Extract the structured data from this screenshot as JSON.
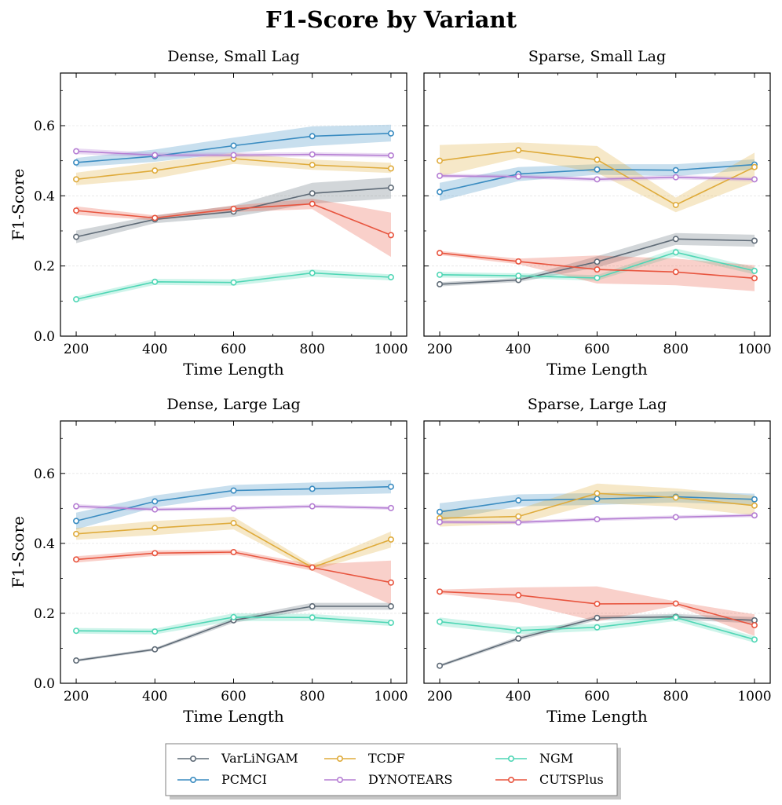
{
  "chart_data": {
    "type": "line",
    "title": "F1-Score  by Variant",
    "xlabel": "Time Length",
    "ylabel": "F1-Score",
    "x": [
      200,
      400,
      600,
      800,
      1000
    ],
    "xticks": [
      "200",
      "400",
      "600",
      "800",
      "1000"
    ],
    "yticks": [
      "0.0",
      "0.2",
      "0.4",
      "0.6"
    ],
    "ylim": [
      0,
      0.75
    ],
    "xlim": [
      160,
      1040
    ],
    "legend": {
      "placement": "bottom-center",
      "entries": [
        "VarLiNGAM",
        "PCMCI",
        "TCDF",
        "DYNOTEARS",
        "NGM",
        "CUTSPlus"
      ]
    },
    "colors": {
      "VarLiNGAM": "#5f6b77",
      "PCMCI": "#3a8cc1",
      "TCDF": "#dfab3b",
      "DYNOTEARS": "#b57ed3",
      "NGM": "#4fd6b5",
      "CUTSPlus": "#e8553f"
    },
    "panels": [
      {
        "title": "Dense, Small Lag",
        "series": [
          {
            "name": "VarLiNGAM",
            "values": [
              0.283,
              0.333,
              0.355,
              0.407,
              0.423
            ],
            "lower": [
              0.265,
              0.322,
              0.34,
              0.378,
              0.392
            ],
            "upper": [
              0.301,
              0.344,
              0.372,
              0.437,
              0.452
            ]
          },
          {
            "name": "PCMCI",
            "values": [
              0.495,
              0.513,
              0.543,
              0.57,
              0.578
            ],
            "lower": [
              0.482,
              0.497,
              0.522,
              0.542,
              0.555
            ],
            "upper": [
              0.508,
              0.532,
              0.566,
              0.598,
              0.603
            ]
          },
          {
            "name": "TCDF",
            "values": [
              0.447,
              0.472,
              0.506,
              0.488,
              0.478
            ],
            "lower": [
              0.43,
              0.449,
              0.491,
              0.474,
              0.465
            ],
            "upper": [
              0.466,
              0.495,
              0.522,
              0.503,
              0.494
            ]
          },
          {
            "name": "DYNOTEARS",
            "values": [
              0.527,
              0.516,
              0.516,
              0.518,
              0.515
            ],
            "lower": [
              0.519,
              0.51,
              0.51,
              0.512,
              0.509
            ],
            "upper": [
              0.535,
              0.523,
              0.523,
              0.524,
              0.521
            ]
          },
          {
            "name": "NGM",
            "values": [
              0.105,
              0.155,
              0.153,
              0.18,
              0.168
            ],
            "lower": [
              0.097,
              0.146,
              0.144,
              0.169,
              0.159
            ],
            "upper": [
              0.113,
              0.163,
              0.162,
              0.19,
              0.176
            ]
          },
          {
            "name": "CUTSPlus",
            "values": [
              0.358,
              0.337,
              0.363,
              0.377,
              0.288
            ],
            "lower": [
              0.346,
              0.33,
              0.354,
              0.362,
              0.226
            ],
            "upper": [
              0.37,
              0.344,
              0.372,
              0.392,
              0.352
            ]
          }
        ]
      },
      {
        "title": "Sparse, Small Lag",
        "series": [
          {
            "name": "VarLiNGAM",
            "values": [
              0.148,
              0.16,
              0.212,
              0.277,
              0.272
            ],
            "lower": [
              0.142,
              0.154,
              0.196,
              0.26,
              0.255
            ],
            "upper": [
              0.154,
              0.166,
              0.228,
              0.294,
              0.289
            ]
          },
          {
            "name": "PCMCI",
            "values": [
              0.411,
              0.462,
              0.475,
              0.473,
              0.489
            ],
            "lower": [
              0.385,
              0.442,
              0.46,
              0.456,
              0.475
            ],
            "upper": [
              0.437,
              0.482,
              0.49,
              0.49,
              0.504
            ]
          },
          {
            "name": "TCDF",
            "values": [
              0.5,
              0.53,
              0.503,
              0.374,
              0.482
            ],
            "lower": [
              0.455,
              0.508,
              0.465,
              0.353,
              0.44
            ],
            "upper": [
              0.545,
              0.552,
              0.542,
              0.395,
              0.523
            ]
          },
          {
            "name": "DYNOTEARS",
            "values": [
              0.457,
              0.455,
              0.447,
              0.453,
              0.447
            ],
            "lower": [
              0.451,
              0.45,
              0.441,
              0.447,
              0.441
            ],
            "upper": [
              0.463,
              0.46,
              0.453,
              0.459,
              0.453
            ]
          },
          {
            "name": "NGM",
            "values": [
              0.175,
              0.172,
              0.166,
              0.239,
              0.186
            ],
            "lower": [
              0.167,
              0.165,
              0.158,
              0.228,
              0.176
            ],
            "upper": [
              0.183,
              0.179,
              0.174,
              0.25,
              0.196
            ]
          },
          {
            "name": "CUTSPlus",
            "values": [
              0.237,
              0.213,
              0.19,
              0.183,
              0.165
            ],
            "lower": [
              0.231,
              0.205,
              0.15,
              0.145,
              0.128
            ],
            "upper": [
              0.243,
              0.221,
              0.23,
              0.221,
              0.202
            ]
          }
        ]
      },
      {
        "title": "Dense, Large Lag",
        "series": [
          {
            "name": "VarLiNGAM",
            "values": [
              0.065,
              0.097,
              0.18,
              0.22,
              0.22
            ],
            "lower": [
              0.061,
              0.093,
              0.173,
              0.21,
              0.21
            ],
            "upper": [
              0.069,
              0.101,
              0.187,
              0.23,
              0.23
            ]
          },
          {
            "name": "PCMCI",
            "values": [
              0.464,
              0.52,
              0.551,
              0.556,
              0.562
            ],
            "lower": [
              0.44,
              0.503,
              0.535,
              0.538,
              0.543
            ],
            "upper": [
              0.488,
              0.537,
              0.567,
              0.574,
              0.581
            ]
          },
          {
            "name": "TCDF",
            "values": [
              0.427,
              0.444,
              0.458,
              0.331,
              0.411
            ],
            "lower": [
              0.41,
              0.424,
              0.44,
              0.322,
              0.388
            ],
            "upper": [
              0.444,
              0.464,
              0.476,
              0.34,
              0.434
            ]
          },
          {
            "name": "DYNOTEARS",
            "values": [
              0.506,
              0.497,
              0.5,
              0.506,
              0.501
            ],
            "lower": [
              0.5,
              0.492,
              0.495,
              0.501,
              0.496
            ],
            "upper": [
              0.512,
              0.502,
              0.505,
              0.511,
              0.506
            ]
          },
          {
            "name": "NGM",
            "values": [
              0.15,
              0.148,
              0.189,
              0.188,
              0.173
            ],
            "lower": [
              0.142,
              0.14,
              0.178,
              0.178,
              0.164
            ],
            "upper": [
              0.158,
              0.156,
              0.2,
              0.198,
              0.182
            ]
          },
          {
            "name": "CUTSPlus",
            "values": [
              0.354,
              0.372,
              0.375,
              0.331,
              0.288
            ],
            "lower": [
              0.345,
              0.364,
              0.368,
              0.322,
              0.225
            ],
            "upper": [
              0.363,
              0.38,
              0.382,
              0.34,
              0.351
            ]
          }
        ]
      },
      {
        "title": "Sparse, Large Lag",
        "series": [
          {
            "name": "VarLiNGAM",
            "values": [
              0.05,
              0.128,
              0.187,
              0.19,
              0.18
            ],
            "lower": [
              0.046,
              0.122,
              0.18,
              0.182,
              0.171
            ],
            "upper": [
              0.054,
              0.134,
              0.194,
              0.198,
              0.189
            ]
          },
          {
            "name": "PCMCI",
            "values": [
              0.49,
              0.523,
              0.527,
              0.533,
              0.526
            ],
            "lower": [
              0.465,
              0.506,
              0.51,
              0.517,
              0.51
            ],
            "upper": [
              0.515,
              0.54,
              0.544,
              0.549,
              0.542
            ]
          },
          {
            "name": "TCDF",
            "values": [
              0.472,
              0.477,
              0.543,
              0.531,
              0.508
            ],
            "lower": [
              0.448,
              0.456,
              0.515,
              0.505,
              0.48
            ],
            "upper": [
              0.496,
              0.498,
              0.571,
              0.557,
              0.536
            ]
          },
          {
            "name": "DYNOTEARS",
            "values": [
              0.461,
              0.46,
              0.469,
              0.475,
              0.48
            ],
            "lower": [
              0.456,
              0.455,
              0.464,
              0.47,
              0.475
            ],
            "upper": [
              0.466,
              0.465,
              0.474,
              0.48,
              0.485
            ]
          },
          {
            "name": "NGM",
            "values": [
              0.176,
              0.151,
              0.16,
              0.188,
              0.125
            ],
            "lower": [
              0.164,
              0.14,
              0.15,
              0.178,
              0.116
            ],
            "upper": [
              0.188,
              0.162,
              0.17,
              0.198,
              0.134
            ]
          },
          {
            "name": "CUTSPlus",
            "values": [
              0.262,
              0.252,
              0.227,
              0.228,
              0.166
            ],
            "lower": [
              0.256,
              0.23,
              0.177,
              0.222,
              0.135
            ],
            "upper": [
              0.268,
              0.274,
              0.277,
              0.234,
              0.197
            ]
          }
        ]
      }
    ]
  }
}
